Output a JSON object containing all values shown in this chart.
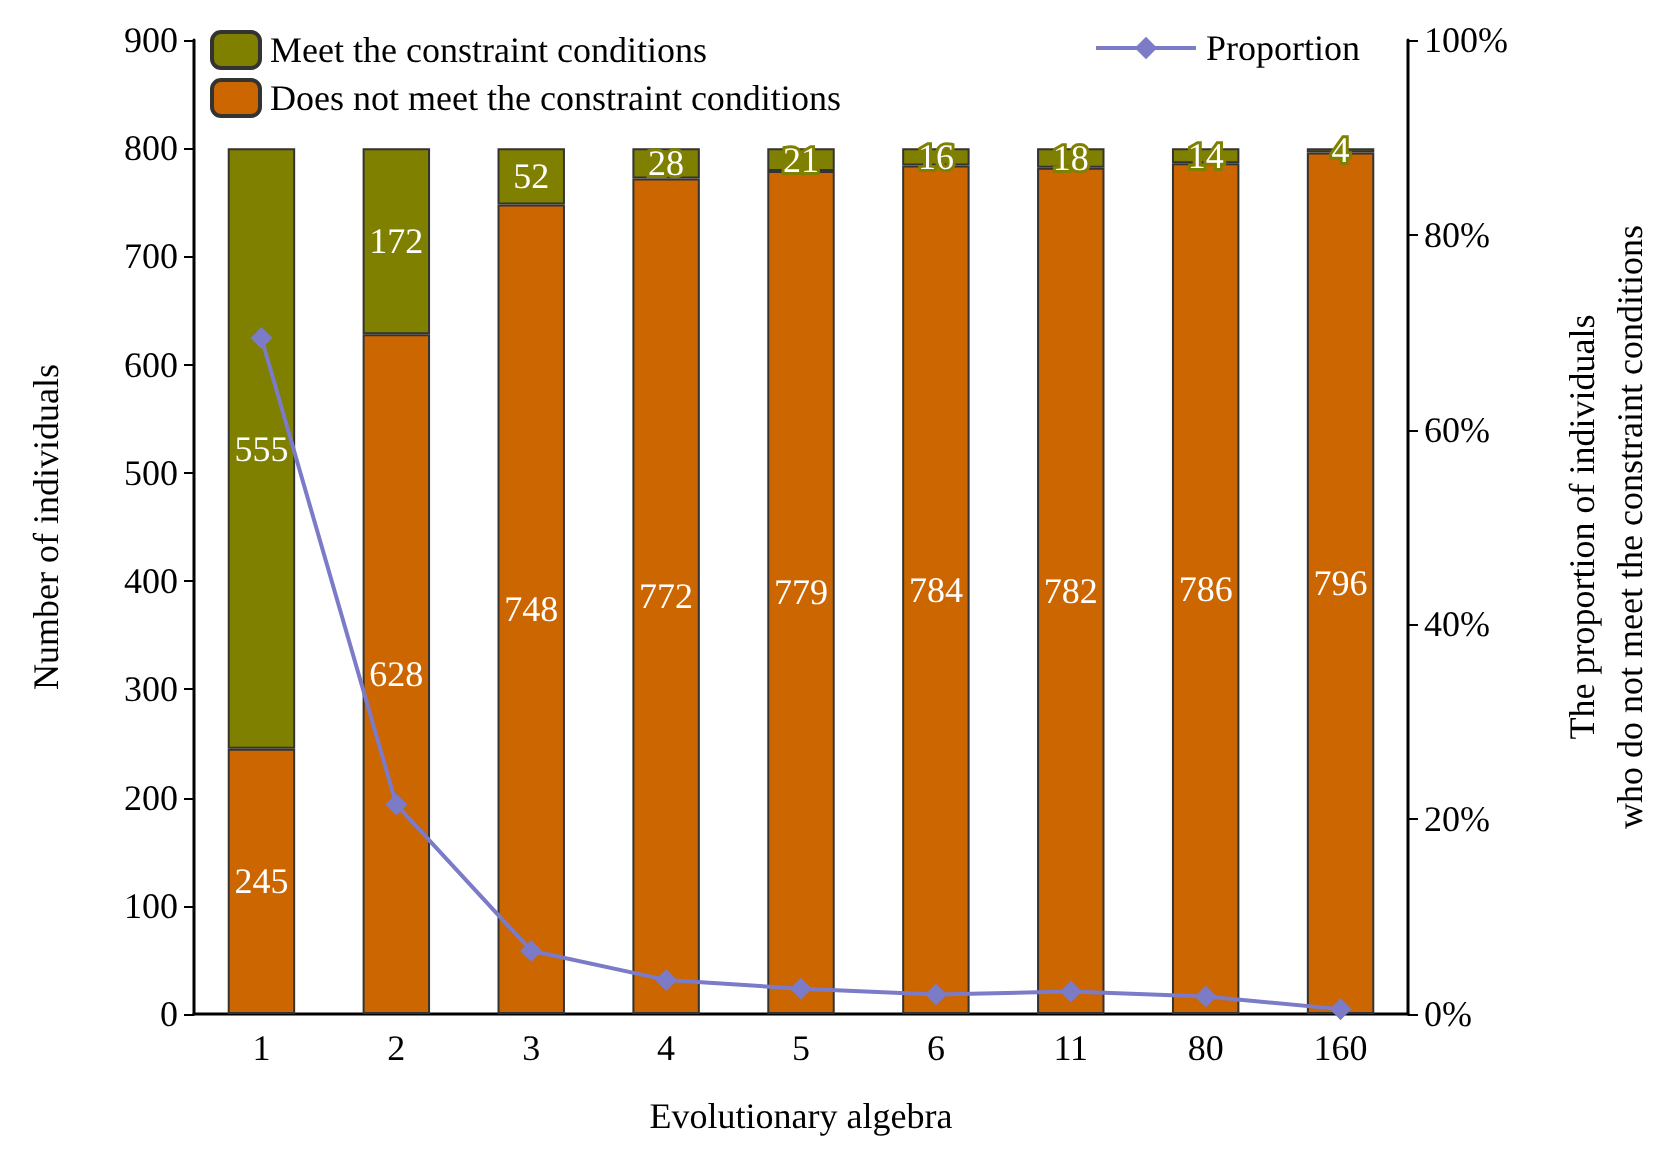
{
  "chart_data": {
    "type": "bar",
    "stacked": true,
    "xlabel": "Evolutionary algebra",
    "ylabel": "Number of individuals",
    "y2label": "The proportion of individuals\nwho do not meet the constraint conditions",
    "categories": [
      "1",
      "2",
      "3",
      "4",
      "5",
      "6",
      "11",
      "80",
      "160"
    ],
    "series": [
      {
        "name": "Does not meet the constraint conditions",
        "color": "#cc6600",
        "values": [
          245,
          628,
          748,
          772,
          779,
          784,
          782,
          786,
          796
        ],
        "value_labels": [
          "245",
          "628",
          "748",
          "772",
          "779",
          "784",
          "782",
          "786",
          "796"
        ]
      },
      {
        "name": "Meet the constraint conditions",
        "color": "#808000",
        "values": [
          555,
          172,
          52,
          28,
          21,
          16,
          18,
          14,
          4
        ],
        "value_labels": [
          "555",
          "172",
          "52",
          "28",
          "21",
          "16",
          "18",
          "14",
          "4"
        ]
      },
      {
        "name": "Proportion",
        "type": "line",
        "axis": "y2",
        "color": "#7b7bc8",
        "marker": "diamond",
        "values": [
          69.4,
          21.5,
          6.5,
          3.5,
          2.6,
          2.0,
          2.3,
          1.8,
          0.5
        ]
      }
    ],
    "legend": "top",
    "grid": false,
    "ylim": [
      0,
      900
    ],
    "yticks": [
      0,
      100,
      200,
      300,
      400,
      500,
      600,
      700,
      800,
      900
    ],
    "y2lim": [
      0,
      100
    ],
    "y2ticks": [
      {
        "value": 0,
        "label": "0%"
      },
      {
        "value": 20,
        "label": "20%"
      },
      {
        "value": 40,
        "label": "40%"
      },
      {
        "value": 60,
        "label": "60%"
      },
      {
        "value": 80,
        "label": "80%"
      },
      {
        "value": 100,
        "label": "100%"
      }
    ]
  }
}
